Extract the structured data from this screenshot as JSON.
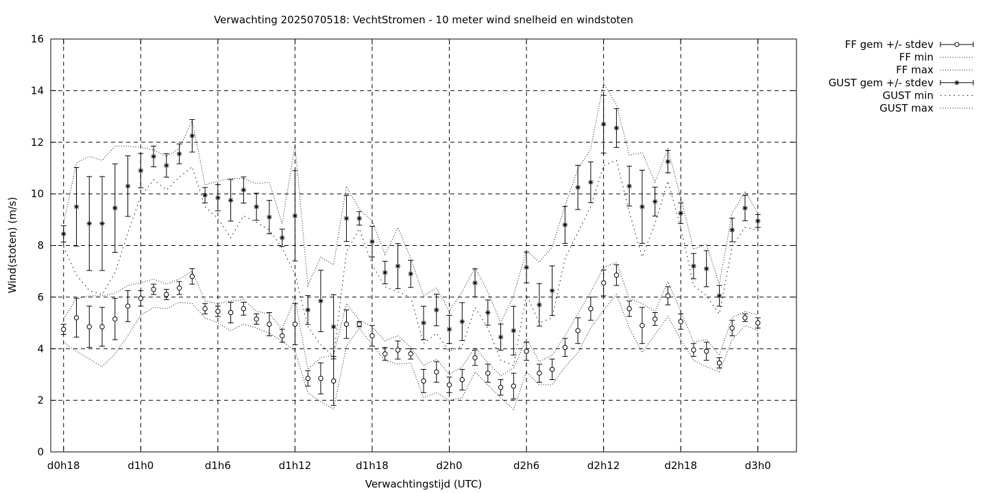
{
  "chart_data": {
    "type": "line",
    "title": "Verwachting 2025070518: VechtStromen - 10 meter wind snelheid en windstoten",
    "xlabel": "Verwachtingstijd (UTC)",
    "ylabel": "Wind(stoten) (m/s)",
    "xlim": [
      -1,
      57
    ],
    "ylim": [
      0,
      16
    ],
    "x_ticks": [
      {
        "x": 0,
        "label": "d0h18"
      },
      {
        "x": 6,
        "label": "d1h0"
      },
      {
        "x": 12,
        "label": "d1h6"
      },
      {
        "x": 18,
        "label": "d1h12"
      },
      {
        "x": 24,
        "label": "d1h18"
      },
      {
        "x": 30,
        "label": "d2h0"
      },
      {
        "x": 36,
        "label": "d2h6"
      },
      {
        "x": 42,
        "label": "d2h12"
      },
      {
        "x": 48,
        "label": "d2h18"
      },
      {
        "x": 54,
        "label": "d3h0"
      }
    ],
    "y_ticks": [
      0,
      2,
      4,
      6,
      8,
      10,
      12,
      14,
      16
    ],
    "grid": true,
    "legend_position": "outside-top-right",
    "x": [
      0,
      1,
      2,
      3,
      4,
      5,
      6,
      7,
      8,
      9,
      10,
      11,
      12,
      13,
      14,
      15,
      16,
      17,
      18,
      19,
      20,
      21,
      22,
      23,
      24,
      25,
      26,
      27,
      28,
      29,
      30,
      31,
      32,
      33,
      34,
      35,
      36,
      37,
      38,
      39,
      40,
      41,
      42,
      43,
      44,
      45,
      46,
      47,
      48,
      49,
      50,
      51,
      52,
      53,
      54
    ],
    "series": [
      {
        "name": "FF gem +/- stdev",
        "style": "errorbars-circle",
        "values": [
          4.75,
          5.2,
          4.85,
          4.85,
          5.15,
          5.65,
          5.95,
          6.3,
          6.1,
          6.35,
          6.8,
          5.55,
          5.45,
          5.4,
          5.55,
          5.15,
          4.95,
          4.5,
          4.95,
          2.85,
          2.85,
          2.75,
          4.95,
          4.95,
          4.5,
          3.8,
          3.95,
          3.8,
          2.75,
          3.1,
          2.6,
          2.8,
          3.65,
          3.05,
          2.5,
          2.55,
          3.9,
          3.05,
          3.2,
          4.05,
          4.7,
          5.55,
          6.55,
          6.85,
          5.55,
          4.9,
          5.15,
          6.05,
          5.05,
          3.95,
          3.9,
          3.45,
          4.8,
          5.2,
          5.0
        ],
        "stdev": [
          0.2,
          0.75,
          0.8,
          0.75,
          0.8,
          0.6,
          0.3,
          0.2,
          0.2,
          0.25,
          0.3,
          0.2,
          0.2,
          0.4,
          0.25,
          0.2,
          0.45,
          0.25,
          0.8,
          0.3,
          0.6,
          0.95,
          0.55,
          0.1,
          0.4,
          0.25,
          0.35,
          0.2,
          0.45,
          0.4,
          0.3,
          0.4,
          0.3,
          0.35,
          0.3,
          0.5,
          0.35,
          0.35,
          0.4,
          0.35,
          0.5,
          0.45,
          0.5,
          0.4,
          0.3,
          0.7,
          0.25,
          0.35,
          0.3,
          0.25,
          0.35,
          0.2,
          0.3,
          0.15,
          0.2
        ]
      },
      {
        "name": "FF min",
        "style": "dotted",
        "values": [
          4.25,
          3.9,
          3.6,
          3.3,
          3.8,
          4.5,
          5.3,
          5.6,
          5.55,
          5.8,
          5.75,
          5.2,
          5.0,
          4.7,
          4.95,
          4.8,
          4.6,
          4.3,
          3.9,
          2.3,
          1.95,
          1.65,
          4.1,
          4.8,
          4.15,
          3.55,
          3.4,
          3.45,
          2.1,
          2.3,
          2.0,
          2.1,
          3.1,
          2.6,
          2.1,
          1.65,
          3.1,
          2.6,
          2.6,
          3.3,
          3.85,
          4.8,
          5.5,
          6.1,
          4.8,
          3.85,
          4.55,
          5.25,
          4.35,
          3.55,
          3.3,
          3.1,
          4.35,
          4.9,
          4.7
        ]
      },
      {
        "name": "FF max",
        "style": "dotted",
        "values": [
          5.15,
          5.95,
          6.05,
          6.05,
          6.15,
          6.45,
          6.55,
          6.7,
          6.5,
          6.7,
          7.0,
          5.85,
          5.75,
          5.85,
          5.9,
          5.45,
          5.35,
          4.75,
          5.95,
          3.2,
          3.65,
          3.75,
          5.75,
          5.1,
          4.85,
          4.3,
          4.5,
          4.05,
          3.35,
          3.6,
          3.0,
          3.3,
          4.05,
          3.45,
          2.95,
          3.25,
          4.4,
          3.5,
          3.75,
          4.5,
          5.35,
          6.2,
          7.15,
          7.35,
          5.95,
          5.75,
          5.45,
          6.6,
          5.45,
          4.25,
          4.35,
          3.75,
          5.2,
          5.45,
          5.3
        ]
      },
      {
        "name": "GUST gem +/- stdev",
        "style": "errorbars-star",
        "values": [
          8.45,
          9.5,
          8.85,
          8.85,
          9.45,
          10.3,
          10.9,
          11.45,
          11.1,
          11.55,
          12.25,
          9.95,
          9.85,
          9.75,
          10.15,
          9.5,
          9.1,
          8.3,
          9.15,
          5.5,
          5.85,
          4.85,
          9.05,
          9.05,
          8.15,
          6.95,
          7.2,
          6.9,
          5.0,
          5.5,
          4.75,
          5.05,
          6.55,
          5.4,
          4.45,
          4.7,
          7.15,
          5.7,
          6.25,
          8.8,
          10.25,
          10.45,
          12.7,
          12.55,
          10.3,
          9.5,
          9.7,
          11.25,
          9.25,
          7.2,
          7.1,
          6.05,
          8.6,
          9.45,
          8.95
        ]
      },
      {
        "name": "GUST min",
        "style": "dotted-sparse",
        "values": [
          7.95,
          6.85,
          6.25,
          6.1,
          6.95,
          8.5,
          9.9,
          10.55,
          10.15,
          10.65,
          11.05,
          9.5,
          9.05,
          8.3,
          9.15,
          8.9,
          8.6,
          7.9,
          6.9,
          4.85,
          4.15,
          3.7,
          7.75,
          8.65,
          7.25,
          6.4,
          6.2,
          6.0,
          4.2,
          4.6,
          3.9,
          4.1,
          5.6,
          4.8,
          3.55,
          3.35,
          6.1,
          5.0,
          5.2,
          7.5,
          8.5,
          9.5,
          11.1,
          11.3,
          9.3,
          7.55,
          8.85,
          10.5,
          8.7,
          6.45,
          6.05,
          5.35,
          7.95,
          8.7,
          8.6
        ]
      },
      {
        "name": "GUST max",
        "style": "dotted",
        "values": [
          8.85,
          11.2,
          11.45,
          11.3,
          11.85,
          11.85,
          11.8,
          11.7,
          11.45,
          11.75,
          12.85,
          10.35,
          10.5,
          10.6,
          10.6,
          10.4,
          10.45,
          8.85,
          11.9,
          6.45,
          7.55,
          7.25,
          10.3,
          9.4,
          8.95,
          7.65,
          8.7,
          7.5,
          6.05,
          6.35,
          5.45,
          6.2,
          7.15,
          6.2,
          5.0,
          6.05,
          7.8,
          7.35,
          7.95,
          9.55,
          10.95,
          11.75,
          14.3,
          13.45,
          11.5,
          11.6,
          10.45,
          11.75,
          9.85,
          7.85,
          8.05,
          6.5,
          9.25,
          10.1,
          9.25
        ]
      }
    ]
  }
}
